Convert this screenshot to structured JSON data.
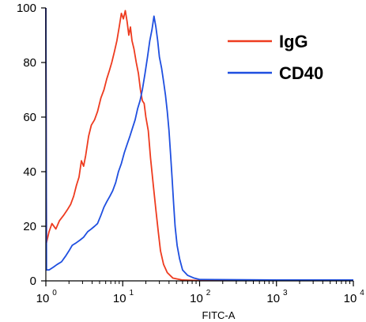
{
  "chart_data": {
    "type": "line",
    "title": "",
    "xlabel": "FITC-A",
    "ylabel": "",
    "x_scale": "log",
    "xlim": [
      1,
      10000
    ],
    "ylim": [
      0,
      100
    ],
    "grid": false,
    "legend_position": "top-right",
    "x_ticks": [
      1,
      10,
      100,
      1000,
      10000
    ],
    "x_tick_labels": [
      {
        "base": "10",
        "exp": "0"
      },
      {
        "base": "10",
        "exp": "1"
      },
      {
        "base": "10",
        "exp": "2"
      },
      {
        "base": "10",
        "exp": "3"
      },
      {
        "base": "10",
        "exp": "4"
      }
    ],
    "y_ticks": [
      0,
      20,
      40,
      60,
      80,
      100
    ],
    "y_tick_labels": [
      "0",
      "20",
      "40",
      "60",
      "80",
      "100"
    ],
    "series": [
      {
        "name": "IgG",
        "color": "#ee3b1f",
        "points": [
          [
            1.0,
            100
          ],
          [
            1.02,
            14
          ],
          [
            1.1,
            18
          ],
          [
            1.2,
            21
          ],
          [
            1.35,
            19
          ],
          [
            1.5,
            22
          ],
          [
            1.7,
            24
          ],
          [
            1.9,
            26
          ],
          [
            2.1,
            28
          ],
          [
            2.3,
            31
          ],
          [
            2.5,
            35
          ],
          [
            2.7,
            38
          ],
          [
            2.9,
            44
          ],
          [
            3.1,
            42
          ],
          [
            3.3,
            46
          ],
          [
            3.6,
            53
          ],
          [
            3.9,
            57
          ],
          [
            4.3,
            59
          ],
          [
            4.7,
            62
          ],
          [
            5.2,
            67
          ],
          [
            5.7,
            70
          ],
          [
            6.2,
            74
          ],
          [
            6.7,
            77
          ],
          [
            7.2,
            80
          ],
          [
            7.8,
            84
          ],
          [
            8.4,
            88
          ],
          [
            9.0,
            93
          ],
          [
            9.6,
            98
          ],
          [
            10.2,
            96
          ],
          [
            10.8,
            99
          ],
          [
            11.4,
            95
          ],
          [
            12.0,
            90
          ],
          [
            12.6,
            93
          ],
          [
            13.2,
            88
          ],
          [
            14.0,
            85
          ],
          [
            15.0,
            80
          ],
          [
            16.0,
            76
          ],
          [
            17.0,
            70
          ],
          [
            18.0,
            66
          ],
          [
            19.0,
            65
          ],
          [
            20.0,
            60
          ],
          [
            21.5,
            55
          ],
          [
            23.0,
            45
          ],
          [
            25.0,
            35
          ],
          [
            27.0,
            26
          ],
          [
            29.0,
            18
          ],
          [
            31.0,
            11
          ],
          [
            34.0,
            6
          ],
          [
            38.0,
            3
          ],
          [
            45.0,
            1
          ],
          [
            60.0,
            0.3
          ],
          [
            100.0,
            0.1
          ],
          [
            1000.0,
            0.1
          ],
          [
            10000.0,
            0.1
          ]
        ]
      },
      {
        "name": "CD40",
        "color": "#1f4fe0",
        "points": [
          [
            1.0,
            100
          ],
          [
            1.02,
            4
          ],
          [
            1.1,
            4
          ],
          [
            1.25,
            5
          ],
          [
            1.4,
            6
          ],
          [
            1.6,
            7
          ],
          [
            1.8,
            9
          ],
          [
            2.0,
            11
          ],
          [
            2.2,
            13
          ],
          [
            2.5,
            14
          ],
          [
            2.8,
            15
          ],
          [
            3.1,
            16
          ],
          [
            3.5,
            18
          ],
          [
            3.9,
            19
          ],
          [
            4.3,
            20
          ],
          [
            4.7,
            21
          ],
          [
            5.2,
            24
          ],
          [
            5.7,
            27
          ],
          [
            6.2,
            29
          ],
          [
            6.8,
            31
          ],
          [
            7.4,
            33
          ],
          [
            8.1,
            36
          ],
          [
            8.8,
            40
          ],
          [
            9.6,
            43
          ],
          [
            10.5,
            47
          ],
          [
            11.4,
            50
          ],
          [
            12.4,
            53
          ],
          [
            13.4,
            56
          ],
          [
            14.5,
            59
          ],
          [
            15.6,
            63
          ],
          [
            16.8,
            66
          ],
          [
            18.0,
            70
          ],
          [
            19.5,
            76
          ],
          [
            21.0,
            82
          ],
          [
            22.5,
            88
          ],
          [
            24.0,
            92
          ],
          [
            25.5,
            97
          ],
          [
            27.0,
            93
          ],
          [
            28.5,
            88
          ],
          [
            30.0,
            82
          ],
          [
            32.0,
            78
          ],
          [
            34.0,
            73
          ],
          [
            36.0,
            68
          ],
          [
            38.0,
            62
          ],
          [
            40.0,
            55
          ],
          [
            42.0,
            46
          ],
          [
            44.0,
            37
          ],
          [
            46.0,
            28
          ],
          [
            48.0,
            20
          ],
          [
            51.0,
            13
          ],
          [
            55.0,
            8
          ],
          [
            60.0,
            4
          ],
          [
            70.0,
            2
          ],
          [
            85.0,
            1
          ],
          [
            100.0,
            0.5
          ],
          [
            1000.0,
            0.3
          ],
          [
            10000.0,
            0.3
          ]
        ]
      }
    ]
  }
}
